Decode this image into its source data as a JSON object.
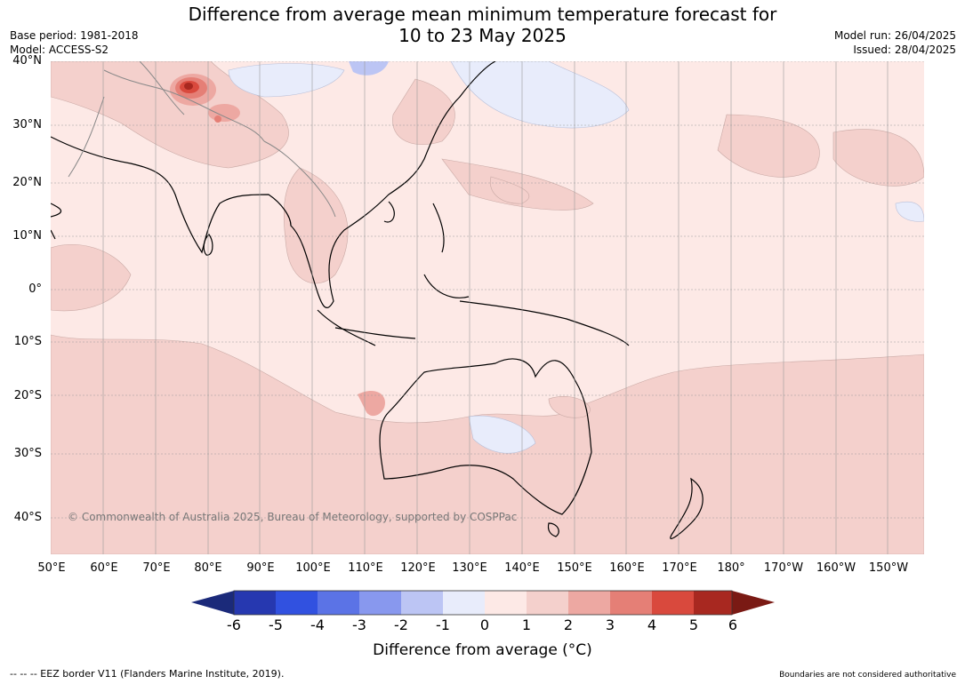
{
  "header": {
    "title_line1": "Difference from average mean minimum temperature forecast for",
    "title_line2": "10 to 23 May 2025",
    "base_period": "Base period: 1981-2018",
    "model": "Model: ACCESS-S2",
    "model_run": "Model run: 26/04/2025",
    "issued": "Issued: 28/04/2025"
  },
  "map": {
    "lat_labels": [
      "40°N",
      "30°N",
      "20°N",
      "10°N",
      "0°",
      "10°S",
      "20°S",
      "30°S",
      "40°S"
    ],
    "lon_labels": [
      "50°E",
      "60°E",
      "70°E",
      "80°E",
      "90°E",
      "100°E",
      "110°E",
      "120°E",
      "130°E",
      "140°E",
      "150°E",
      "160°E",
      "170°E",
      "180°",
      "170°W",
      "160°W",
      "150°W"
    ],
    "copyright": "© Commonwealth of Australia 2025, Bureau of Meteorology, supported by COSPPac",
    "land_icon": "continent-outline-icon"
  },
  "colorbar": {
    "title": "Difference from average (°C)",
    "ticks": [
      "-6",
      "-5",
      "-4",
      "-3",
      "-2",
      "-1",
      "0",
      "1",
      "2",
      "3",
      "4",
      "5",
      "6"
    ],
    "colors": [
      "#1b2a7a",
      "#2638b0",
      "#3151e0",
      "#5b73e6",
      "#8898ee",
      "#bcc5f4",
      "#e8ecfb",
      "#fde9e6",
      "#f4d0cc",
      "#eda8a2",
      "#e57f76",
      "#d9493d",
      "#a82820",
      "#7a1a14"
    ]
  },
  "footer": {
    "eez": "--  --  -- EEZ border V11 (Flanders Marine Institute, 2019).",
    "boundaries_note": "Boundaries are not considered authoritative"
  }
}
